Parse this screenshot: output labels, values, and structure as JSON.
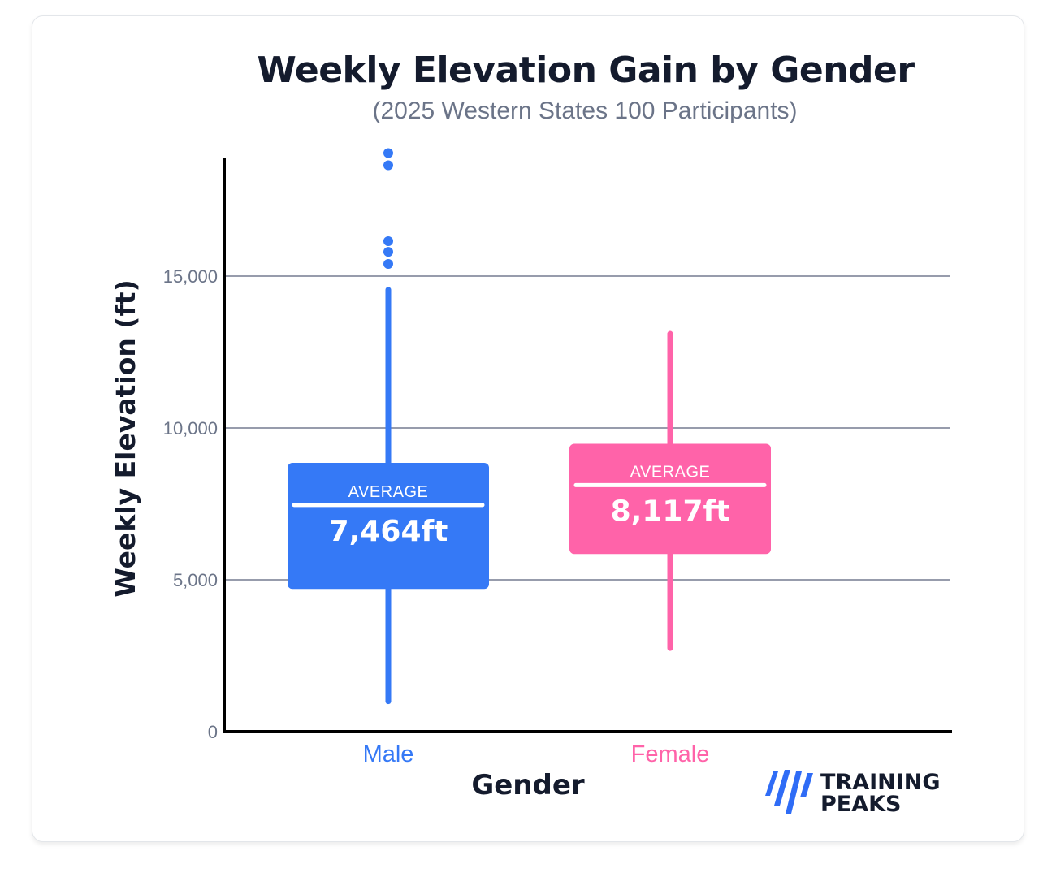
{
  "title": "Weekly Elevation Gain by Gender",
  "subtitle": "(2025 Western States 100 Participants)",
  "logo": {
    "line1": "TRAINING",
    "line2": "PEAKS",
    "icon": "trainingpeaks-logo-icon",
    "color": "#2f6cf6"
  },
  "chart_data": {
    "type": "box",
    "title": "Weekly Elevation Gain by Gender",
    "subtitle": "(2025 Western States 100 Participants)",
    "xlabel": "Gender",
    "ylabel": "Weekly Elevation (ft)",
    "ylim": [
      0,
      18800
    ],
    "yticks": [
      0,
      5000,
      10000,
      15000
    ],
    "ytick_labels": [
      "0",
      "5,000",
      "10,000",
      "15,000"
    ],
    "grid": true,
    "average_label": "AVERAGE",
    "categories": [
      "Male",
      "Female"
    ],
    "series": [
      {
        "category": "Male",
        "color": "#3579f6",
        "min": 1000,
        "q1": 4700,
        "average": 7464,
        "average_label": "7,464ft",
        "q3": 8850,
        "max": 14550,
        "outliers": [
          15400,
          15800,
          16150,
          18650,
          19050
        ]
      },
      {
        "category": "Female",
        "color": "#ff63a9",
        "min": 2750,
        "q1": 5850,
        "average": 8117,
        "average_label": "8,117ft",
        "q3": 9480,
        "max": 13100,
        "outliers": []
      }
    ]
  }
}
